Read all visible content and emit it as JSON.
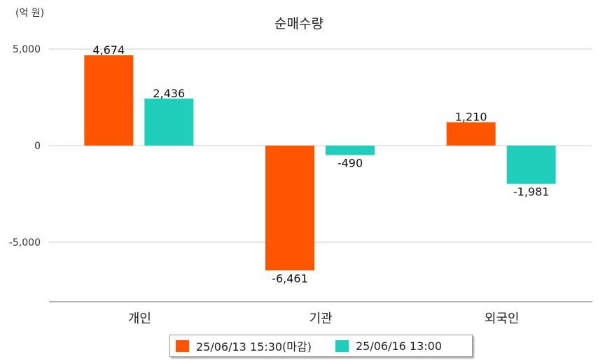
{
  "unit_label": "(억 원)",
  "chart_data": {
    "type": "bar",
    "title": "순매수량",
    "categories": [
      "개인",
      "기관",
      "외국인"
    ],
    "series": [
      {
        "name": "25/06/13 15:30(마감)",
        "color": "#ff5400",
        "values": [
          4674,
          -6461,
          1210
        ],
        "labels": [
          "4,674",
          "-6,461",
          "1,210"
        ]
      },
      {
        "name": "25/06/16 13:00",
        "color": "#1fcfbc",
        "values": [
          2436,
          -490,
          -1981
        ],
        "labels": [
          "2,436",
          "-490",
          "-1,981"
        ]
      }
    ],
    "yticks": [
      5000,
      0,
      -5000
    ],
    "ytick_labels": [
      "5,000",
      "0",
      "-5,000"
    ],
    "ylim": [
      -8000,
      5000
    ],
    "grid": true,
    "legend_position": "bottom"
  }
}
